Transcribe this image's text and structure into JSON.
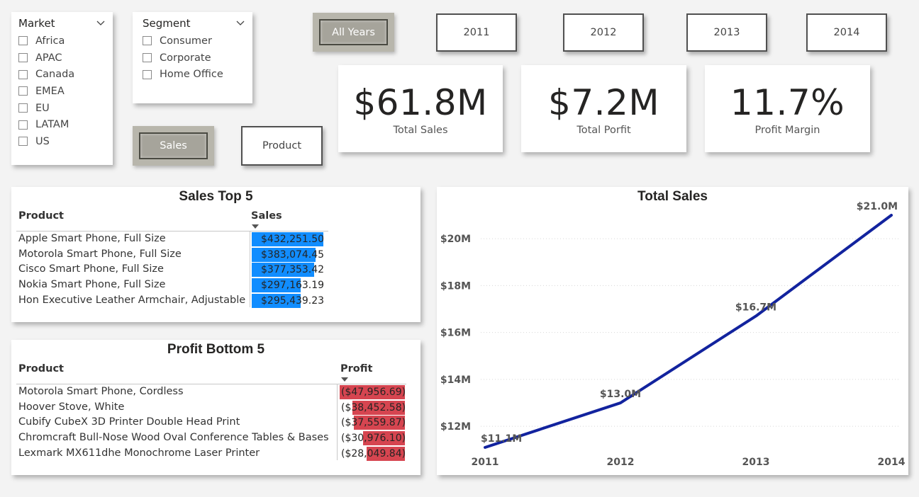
{
  "market_slicer": {
    "title": "Market",
    "items": [
      "Africa",
      "APAC",
      "Canada",
      "EMEA",
      "EU",
      "LATAM",
      "US"
    ]
  },
  "segment_slicer": {
    "title": "Segment",
    "items": [
      "Consumer",
      "Corporate",
      "Home Office"
    ]
  },
  "year_buttons": {
    "all": "All Years",
    "y2011": "2011",
    "y2012": "2012",
    "y2013": "2013",
    "y2014": "2014"
  },
  "view_buttons": {
    "sales": "Sales",
    "product": "Product"
  },
  "kpis": {
    "total_sales": {
      "value": "$61.8M",
      "label": "Total Sales"
    },
    "total_profit": {
      "value": "$7.2M",
      "label": "Total Porfit"
    },
    "profit_margin": {
      "value": "11.7%",
      "label": "Profit Margin"
    }
  },
  "sales_top5": {
    "title": "Sales Top 5",
    "col_product": "Product",
    "col_sales": "Sales",
    "bar_color": "#118dff",
    "rows": [
      {
        "product": "Apple Smart Phone, Full Size",
        "value": "$432,251.50",
        "amount": 432251.5
      },
      {
        "product": "Motorola Smart Phone, Full Size",
        "value": "$383,074.45",
        "amount": 383074.45
      },
      {
        "product": "Cisco Smart Phone, Full Size",
        "value": "$377,353.42",
        "amount": 377353.42
      },
      {
        "product": "Nokia Smart Phone, Full Size",
        "value": "$297,163.19",
        "amount": 297163.19
      },
      {
        "product": "Hon Executive Leather Armchair, Adjustable",
        "value": "$295,439.23",
        "amount": 295439.23
      }
    ]
  },
  "profit_bottom5": {
    "title": "Profit Bottom 5",
    "col_product": "Product",
    "col_profit": "Profit",
    "bar_color": "#d64550",
    "rows": [
      {
        "product": "Motorola Smart Phone, Cordless",
        "value": "($47,956.69)",
        "amount": -47956.69
      },
      {
        "product": "Hoover Stove, White",
        "value": "($38,452.58)",
        "amount": -38452.58
      },
      {
        "product": "Cubify CubeX 3D Printer Double Head Print",
        "value": "($37,559.87)",
        "amount": -37559.87
      },
      {
        "product": "Chromcraft Bull-Nose Wood Oval Conference Tables & Bases",
        "value": "($30,976.10)",
        "amount": -30976.1
      },
      {
        "product": "Lexmark MX611dhe Monochrome Laser Printer",
        "value": "($28,049.84)",
        "amount": -28049.84
      }
    ]
  },
  "chart_data": {
    "type": "line",
    "title": "Total Sales",
    "x": [
      "2011",
      "2012",
      "2013",
      "2014"
    ],
    "series": [
      {
        "values": [
          11.1,
          13.0,
          16.7,
          21.0
        ],
        "labels": [
          "$11.1M",
          "$13.0M",
          "$16.7M",
          "$21.0M"
        ]
      }
    ],
    "yticks": [
      12,
      14,
      16,
      18,
      20
    ],
    "ytick_labels": [
      "$12M",
      "$14M",
      "$16M",
      "$18M",
      "$20M"
    ],
    "ylim": [
      11.1,
      21.0
    ],
    "grid": true,
    "line_color": "#12239e"
  }
}
